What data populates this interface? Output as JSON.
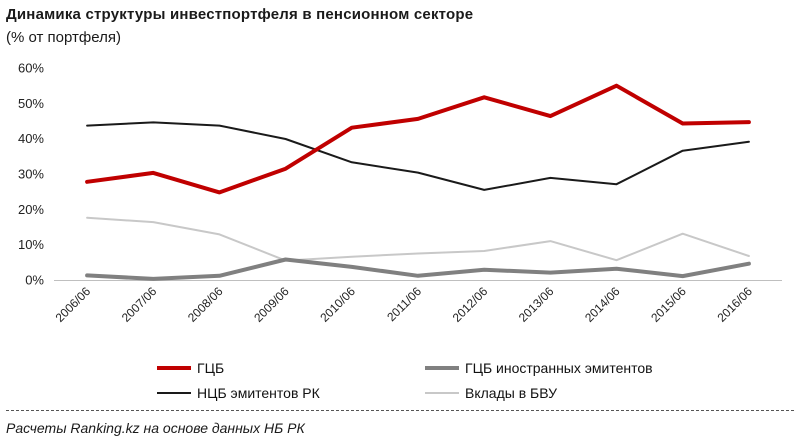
{
  "chart_data": {
    "type": "line",
    "title": "Динамика  структуры  инвестпортфеля  в  пенсионном  секторе",
    "subtitle": "(% от портфеля)",
    "categories": [
      "2006/06",
      "2007/06",
      "2008/06",
      "2009/06",
      "2010/06",
      "2011/06",
      "2012/06",
      "2013/06",
      "2014/06",
      "2015/06",
      "2016/06"
    ],
    "ylim": [
      0,
      60
    ],
    "yticks": [
      0,
      10,
      20,
      30,
      40,
      50,
      60
    ],
    "ytick_labels": [
      "0%",
      "10%",
      "20%",
      "30%",
      "40%",
      "50%",
      "60%"
    ],
    "series": [
      {
        "name": "ГЦБ",
        "color": "#c00000",
        "width": 4,
        "values": [
          27.8,
          30.3,
          24.8,
          31.5,
          43.1,
          45.6,
          51.7,
          46.4,
          55.0,
          44.3,
          44.7
        ]
      },
      {
        "name": "ГЦБ иностранных эмитентов",
        "color": "#808080",
        "width": 4,
        "values": [
          1.3,
          0.3,
          1.2,
          5.8,
          3.7,
          1.2,
          2.9,
          2.1,
          3.2,
          1.1,
          4.6
        ]
      },
      {
        "name": "НЦБ эмитентов РК",
        "color": "#1a1a1a",
        "width": 2,
        "values": [
          43.7,
          44.6,
          43.7,
          39.9,
          33.3,
          30.4,
          25.5,
          28.9,
          27.1,
          36.6,
          39.1
        ]
      },
      {
        "name": "Вклады в БВУ",
        "color": "#c8c8c8",
        "width": 2,
        "values": [
          17.6,
          16.4,
          12.9,
          5.5,
          6.6,
          7.5,
          8.2,
          11.0,
          5.6,
          13.1,
          6.8
        ]
      }
    ],
    "legend": "bottom",
    "source": "Расчеты Ranking.kz на основе данных НБ РК"
  }
}
